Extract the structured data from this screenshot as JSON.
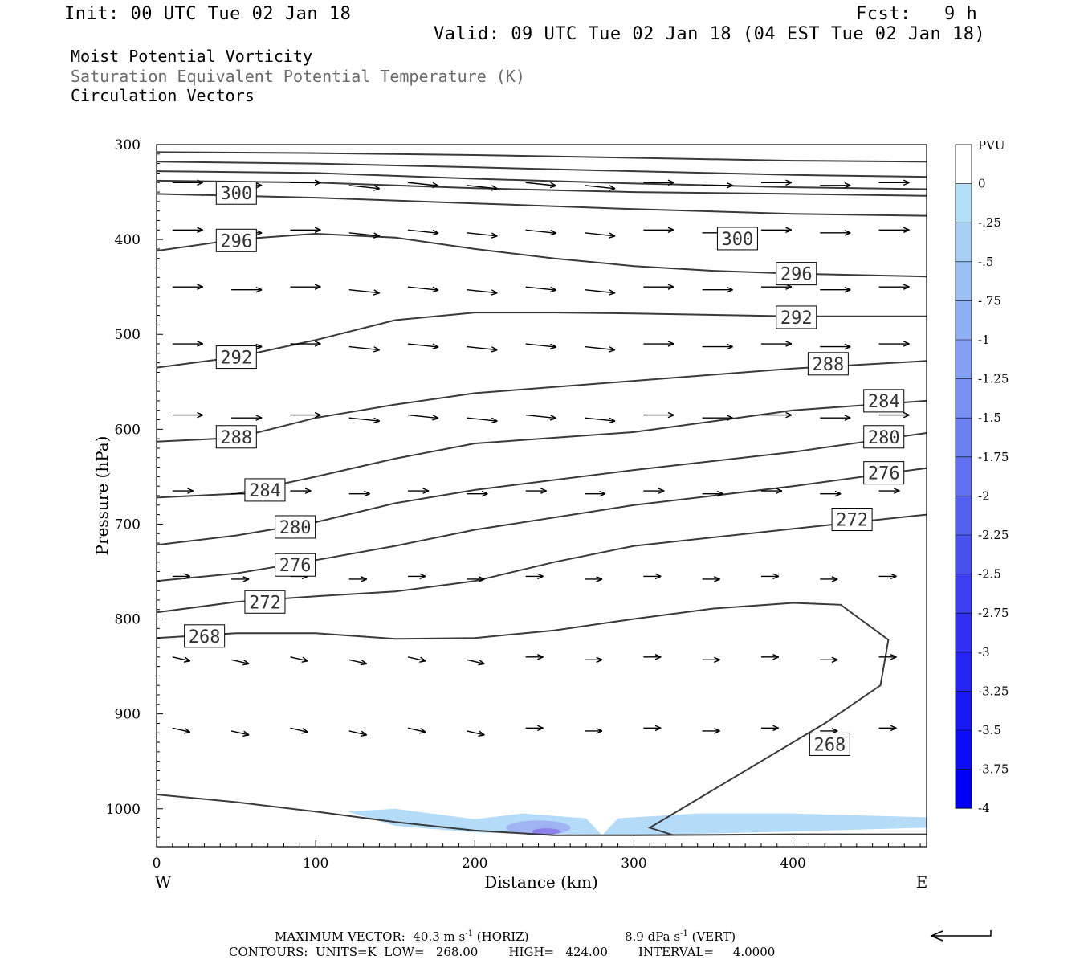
{
  "header": {
    "init": "Init: 00 UTC Tue 02 Jan 18",
    "fcst": "Fcst:   9 h",
    "valid": "Valid: 09 UTC Tue 02 Jan 18 (04 EST Tue 02 Jan 18)",
    "fields": [
      "Moist Potential Vorticity",
      "Saturation Equivalent Potential Temperature (K)",
      "Circulation Vectors"
    ]
  },
  "colors": {
    "field1": "#000000",
    "field2": "#6b6b6b",
    "field3": "#000000",
    "contour": "#3a3a3a",
    "fill_light": "#b4dcf8",
    "fill_mid": "#a0b4f4",
    "fill_dark": "#8c80ec"
  },
  "chart_data": {
    "type": "contour",
    "xlabel": "Distance (km)",
    "ylabel": "Pressure (hPa)",
    "xlim": [
      0,
      484
    ],
    "ylim": [
      300,
      1040
    ],
    "x_ticks": [
      0,
      100,
      200,
      300,
      400
    ],
    "y_ticks": [
      300,
      400,
      500,
      600,
      700,
      800,
      900,
      1000
    ],
    "x_tick_labels": [
      "0",
      "100",
      "200",
      "300",
      "400"
    ],
    "y_tick_labels": [
      "300",
      "400",
      "500",
      "600",
      "700",
      "800",
      "900",
      "1000"
    ],
    "left_end_label": "W",
    "right_end_label": "E",
    "colorbar": {
      "unit": "PVU",
      "labels": [
        "0",
        "-.25",
        "-.5",
        "-.75",
        "-1",
        "-1.25",
        "-1.5",
        "-1.75",
        "-2",
        "-2.25",
        "-2.5",
        "-2.75",
        "-3",
        "-3.25",
        "-3.5",
        "-3.75",
        "-4"
      ],
      "colors": [
        "#ffffff",
        "#b4e0f8",
        "#a8d0f7",
        "#9cc0f6",
        "#90b0f5",
        "#84a0f4",
        "#7890f3",
        "#6c80f2",
        "#6070f1",
        "#5460f0",
        "#4850f0",
        "#3c40f1",
        "#3030f2",
        "#2424f4",
        "#1818f6",
        "#0c0cf8",
        "#0000fa"
      ]
    },
    "contours": [
      {
        "label": "300",
        "label_at": [
          38,
          351
        ],
        "points": [
          [
            0,
            338
          ],
          [
            100,
            340
          ],
          [
            200,
            346
          ],
          [
            300,
            350
          ],
          [
            400,
            352
          ],
          [
            484,
            354
          ]
        ]
      },
      {
        "label": "300",
        "label_at": [
          353,
          399
        ],
        "points": [
          [
            0,
            308
          ],
          [
            100,
            309
          ],
          [
            200,
            311
          ],
          [
            300,
            314
          ],
          [
            400,
            317
          ],
          [
            484,
            318
          ]
        ]
      },
      {
        "label": "",
        "points": [
          [
            0,
            318
          ],
          [
            100,
            320
          ],
          [
            200,
            324
          ],
          [
            300,
            328
          ],
          [
            400,
            332
          ],
          [
            484,
            334
          ]
        ]
      },
      {
        "label": "",
        "points": [
          [
            0,
            328
          ],
          [
            100,
            330
          ],
          [
            200,
            336
          ],
          [
            300,
            341
          ],
          [
            400,
            345
          ],
          [
            484,
            347
          ]
        ]
      },
      {
        "label": "",
        "points": [
          [
            0,
            352
          ],
          [
            100,
            356
          ],
          [
            200,
            362
          ],
          [
            300,
            368
          ],
          [
            400,
            373
          ],
          [
            484,
            375
          ]
        ]
      },
      {
        "label": "296",
        "label_at": [
          38,
          401
        ],
        "points": [
          [
            0,
            412
          ],
          [
            50,
            400
          ],
          [
            100,
            394
          ],
          [
            150,
            398
          ],
          [
            200,
            410
          ],
          [
            250,
            420
          ],
          [
            300,
            428
          ],
          [
            350,
            433
          ],
          [
            400,
            436
          ],
          [
            484,
            439
          ]
        ]
      },
      {
        "label": "296",
        "label_at": [
          390,
          436
        ],
        "points": []
      },
      {
        "label": "292",
        "label_at": [
          38,
          524
        ],
        "points": [
          [
            0,
            535
          ],
          [
            50,
            524
          ],
          [
            100,
            506
          ],
          [
            150,
            485
          ],
          [
            200,
            477
          ],
          [
            250,
            477
          ],
          [
            300,
            478
          ],
          [
            400,
            481
          ],
          [
            484,
            481
          ]
        ]
      },
      {
        "label": "292",
        "label_at": [
          390,
          482
        ],
        "points": []
      },
      {
        "label": "288",
        "label_at": [
          38,
          608
        ],
        "points": [
          [
            0,
            613
          ],
          [
            50,
            609
          ],
          [
            100,
            588
          ],
          [
            150,
            574
          ],
          [
            200,
            562
          ],
          [
            300,
            549
          ],
          [
            400,
            536
          ],
          [
            484,
            528
          ]
        ]
      },
      {
        "label": "288",
        "label_at": [
          410,
          531
        ],
        "points": []
      },
      {
        "label": "284",
        "label_at": [
          56,
          664
        ],
        "points": [
          [
            0,
            672
          ],
          [
            50,
            668
          ],
          [
            100,
            650
          ],
          [
            150,
            631
          ],
          [
            200,
            615
          ],
          [
            300,
            603
          ],
          [
            400,
            580
          ],
          [
            484,
            570
          ]
        ]
      },
      {
        "label": "284",
        "label_at": [
          445,
          570
        ],
        "points": []
      },
      {
        "label": "280",
        "label_at": [
          75,
          703
        ],
        "points": [
          [
            0,
            722
          ],
          [
            50,
            712
          ],
          [
            100,
            698
          ],
          [
            150,
            678
          ],
          [
            200,
            664
          ],
          [
            300,
            643
          ],
          [
            400,
            624
          ],
          [
            484,
            604
          ]
        ]
      },
      {
        "label": "280",
        "label_at": [
          445,
          608
        ],
        "points": []
      },
      {
        "label": "276",
        "label_at": [
          75,
          743
        ],
        "points": [
          [
            0,
            760
          ],
          [
            50,
            752
          ],
          [
            100,
            738
          ],
          [
            150,
            723
          ],
          [
            200,
            706
          ],
          [
            300,
            680
          ],
          [
            400,
            660
          ],
          [
            484,
            641
          ]
        ]
      },
      {
        "label": "276",
        "label_at": [
          445,
          646
        ],
        "points": []
      },
      {
        "label": "272",
        "label_at": [
          56,
          782
        ],
        "points": [
          [
            0,
            793
          ],
          [
            50,
            782
          ],
          [
            100,
            776
          ],
          [
            150,
            771
          ],
          [
            200,
            760
          ],
          [
            250,
            740
          ],
          [
            300,
            723
          ],
          [
            400,
            705
          ],
          [
            484,
            690
          ]
        ]
      },
      {
        "label": "272",
        "label_at": [
          425,
          695
        ],
        "points": []
      },
      {
        "label": "268",
        "label_at": [
          18,
          818
        ],
        "points": [
          [
            0,
            820
          ],
          [
            50,
            815
          ],
          [
            100,
            815
          ],
          [
            150,
            821
          ],
          [
            200,
            820
          ],
          [
            250,
            812
          ],
          [
            300,
            800
          ],
          [
            350,
            789
          ],
          [
            400,
            783
          ],
          [
            430,
            785
          ],
          [
            460,
            822
          ],
          [
            455,
            870
          ],
          [
            420,
            910
          ],
          [
            380,
            950
          ],
          [
            340,
            990
          ],
          [
            310,
            1020
          ],
          [
            325,
            1028
          ]
        ]
      },
      {
        "label": "268",
        "label_at": [
          411,
          932
        ],
        "points": []
      },
      {
        "label": "",
        "points": [
          [
            0,
            985
          ],
          [
            50,
            993
          ],
          [
            100,
            1003
          ],
          [
            150,
            1014
          ],
          [
            200,
            1023
          ],
          [
            250,
            1028
          ],
          [
            300,
            1028
          ],
          [
            400,
            1027
          ],
          [
            484,
            1027
          ]
        ]
      }
    ],
    "filled_region": {
      "label": "negative MPV",
      "x_range": [
        120,
        484
      ],
      "p_range": [
        1000,
        1028
      ]
    },
    "vectors": {
      "description": "circulation vectors, west-to-east flow",
      "rows_hPa": [
        340,
        390,
        450,
        510,
        585,
        665,
        755,
        840,
        915
      ]
    },
    "footer": {
      "max_vector": "MAXIMUM VECTOR:  40.3 m s",
      "max_vector_unit": "-1",
      "max_vector_horiz": "(HORIZ)",
      "vert": "8.9 dPa s",
      "vert_unit": "-1",
      "vert_label": "(VERT)",
      "contours": "CONTOURS:  UNITS=K  LOW=   268.00        HIGH=   424.00        INTERVAL=     4.0000"
    }
  }
}
